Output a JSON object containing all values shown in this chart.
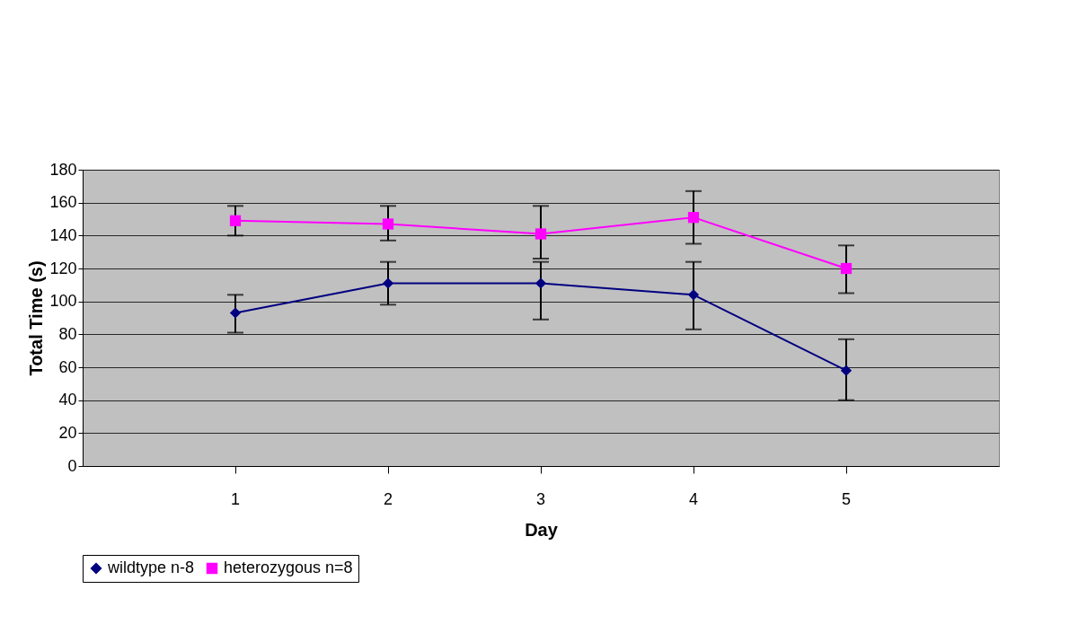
{
  "chart_data": {
    "type": "line",
    "xlabel": "Day",
    "ylabel": "Total Time (s)",
    "categories": [
      "1",
      "2",
      "3",
      "4",
      "5"
    ],
    "series": [
      {
        "name": "wildtype n-8",
        "color": "#000080",
        "marker": "diamond",
        "values": [
          93,
          111,
          111,
          104,
          58
        ],
        "errors": [
          [
            81,
            104
          ],
          [
            98,
            124
          ],
          [
            89,
            124
          ],
          [
            83,
            124
          ],
          [
            40,
            77
          ]
        ]
      },
      {
        "name": "heterozygous n=8",
        "color": "#ff00ff",
        "marker": "square",
        "values": [
          149,
          147,
          141,
          151,
          120
        ],
        "errors": [
          [
            140,
            158
          ],
          [
            137,
            158
          ],
          [
            126,
            158
          ],
          [
            135,
            167
          ],
          [
            105,
            134
          ]
        ]
      }
    ],
    "ylim": [
      0,
      180
    ],
    "yticks": [
      0,
      20,
      40,
      60,
      80,
      100,
      120,
      140,
      160,
      180
    ],
    "grid": "y",
    "legend": "bottom",
    "line_style": "solid"
  }
}
